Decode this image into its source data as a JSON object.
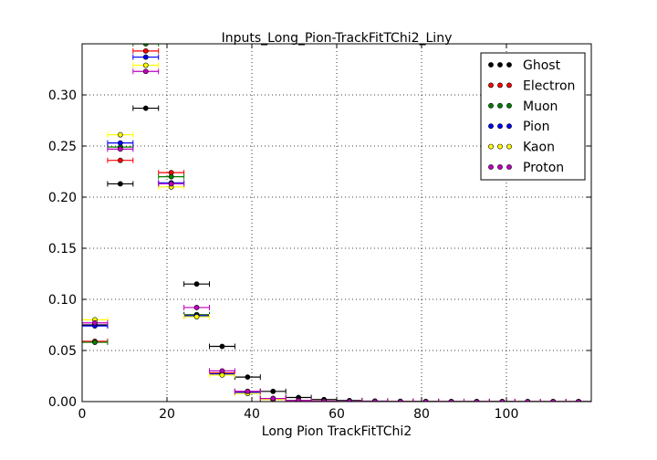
{
  "chart_data": {
    "type": "scatter",
    "title": "Inputs_Long_Pion-TrackFitTChi2_Liny",
    "xlabel": "Long Pion TrackFitTChi2",
    "ylabel": "",
    "xlim": [
      0,
      120
    ],
    "ylim": [
      0,
      0.35
    ],
    "xticks": [
      0,
      20,
      40,
      60,
      80,
      100
    ],
    "yticks": [
      0.0,
      0.05,
      0.1,
      0.15,
      0.2,
      0.25,
      0.3
    ],
    "xtick_labels": [
      "0",
      "20",
      "40",
      "60",
      "80",
      "100"
    ],
    "ytick_labels": [
      "0.00",
      "0.05",
      "0.10",
      "0.15",
      "0.20",
      "0.25",
      "0.30"
    ],
    "bin_width": 6,
    "x": [
      3,
      9,
      15,
      21,
      27,
      33,
      39,
      45,
      51,
      57,
      63,
      69,
      75,
      81,
      87,
      93,
      99,
      105,
      111,
      117
    ],
    "grid": true,
    "legend_position": "top-right",
    "series": [
      {
        "name": "Ghost",
        "color": "#000000",
        "values": [
          0.075,
          0.213,
          0.287,
          0.213,
          0.115,
          0.054,
          0.024,
          0.01,
          0.004,
          0.002,
          0.001,
          0.0005,
          0.0003,
          0.0002,
          0.0001,
          0.0001,
          0.0001,
          0.0,
          0.0,
          0.0
        ]
      },
      {
        "name": "Electron",
        "color": "#ff0000",
        "values": [
          0.059,
          0.236,
          0.343,
          0.224,
          0.085,
          0.028,
          0.01,
          0.003,
          0.001,
          0.0005,
          0.0002,
          0.0001,
          0.0001,
          0.0,
          0.0,
          0.0,
          0.0,
          0.0,
          0.0,
          0.0
        ]
      },
      {
        "name": "Muon",
        "color": "#008000",
        "values": [
          0.058,
          0.249,
          0.35,
          0.22,
          0.085,
          0.027,
          0.009,
          0.003,
          0.001,
          0.0004,
          0.0002,
          0.0001,
          0.0,
          0.0,
          0.0,
          0.0,
          0.0,
          0.0,
          0.0,
          0.0
        ]
      },
      {
        "name": "Pion",
        "color": "#0000ff",
        "values": [
          0.074,
          0.253,
          0.337,
          0.214,
          0.084,
          0.027,
          0.009,
          0.003,
          0.001,
          0.0004,
          0.0002,
          0.0001,
          0.0,
          0.0,
          0.0,
          0.0,
          0.0,
          0.0,
          0.0,
          0.0
        ]
      },
      {
        "name": "Kaon",
        "color": "#ffff00",
        "values": [
          0.08,
          0.261,
          0.329,
          0.21,
          0.083,
          0.026,
          0.008,
          0.002,
          0.001,
          0.0003,
          0.0001,
          0.0,
          0.0,
          0.0,
          0.0,
          0.0,
          0.0,
          0.0,
          0.0,
          0.0
        ]
      },
      {
        "name": "Proton",
        "color": "#bf00bf",
        "values": [
          0.077,
          0.247,
          0.323,
          0.213,
          0.092,
          0.03,
          0.01,
          0.003,
          0.001,
          0.0004,
          0.0002,
          0.0001,
          0.0,
          0.0,
          0.0,
          0.0,
          0.0,
          0.0,
          0.0,
          0.0
        ]
      }
    ]
  }
}
